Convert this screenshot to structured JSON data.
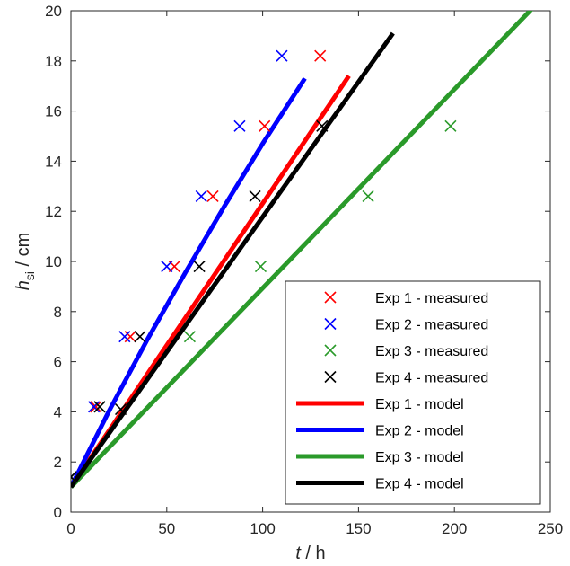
{
  "chart_data": {
    "type": "line",
    "xlabel": {
      "italic": "t",
      "rest": " / h"
    },
    "ylabel": {
      "main": "h",
      "sub": "si",
      "rest": " / cm"
    },
    "xlim": [
      0,
      250
    ],
    "ylim": [
      0,
      20
    ],
    "xticks": [
      0,
      50,
      100,
      150,
      200,
      250
    ],
    "yticks": [
      0,
      2,
      4,
      6,
      8,
      10,
      12,
      14,
      16,
      18,
      20
    ],
    "grid": false,
    "legend_position": "bottom-right",
    "measured": [
      {
        "name": "Exp 1 - measured",
        "color": "#ff0000",
        "marker": "x",
        "x": [
          0,
          13,
          31,
          54,
          74,
          101,
          130
        ],
        "y": [
          1.4,
          4.2,
          7.0,
          9.8,
          12.6,
          15.4,
          18.2
        ]
      },
      {
        "name": "Exp 2 - measured",
        "color": "#0000ff",
        "marker": "x",
        "x": [
          0,
          12,
          28,
          50,
          68,
          88,
          110
        ],
        "y": [
          1.4,
          4.2,
          7.0,
          9.8,
          12.6,
          15.4,
          18.2
        ]
      },
      {
        "name": "Exp 3 - measured",
        "color": "#2a9a2a",
        "marker": "x",
        "x": [
          0,
          15,
          62,
          99,
          155,
          198
        ],
        "y": [
          1.4,
          4.2,
          7.0,
          9.8,
          12.6,
          15.4
        ]
      },
      {
        "name": "Exp 4 - measured",
        "color": "#000000",
        "marker": "x",
        "x": [
          0,
          15,
          26,
          36,
          67,
          96,
          131
        ],
        "y": [
          1.4,
          4.2,
          4.1,
          7.0,
          9.8,
          12.6,
          15.4
        ]
      }
    ],
    "models": [
      {
        "name": "Exp 1 - model",
        "color": "#ff0000",
        "x": [
          0,
          145
        ],
        "y": [
          1.0,
          17.4
        ]
      },
      {
        "name": "Exp 2 - model",
        "color": "#0000ff",
        "x": [
          0,
          20,
          40,
          60,
          80,
          100,
          122
        ],
        "y": [
          1.0,
          4.05,
          6.9,
          9.6,
          12.2,
          14.7,
          17.3
        ]
      },
      {
        "name": "Exp 3 - model",
        "color": "#2a9a2a",
        "x": [
          0,
          242
        ],
        "y": [
          1.0,
          20.2
        ]
      },
      {
        "name": "Exp 4 - model",
        "color": "#000000",
        "x": [
          0,
          168
        ],
        "y": [
          1.0,
          19.1
        ]
      }
    ]
  }
}
